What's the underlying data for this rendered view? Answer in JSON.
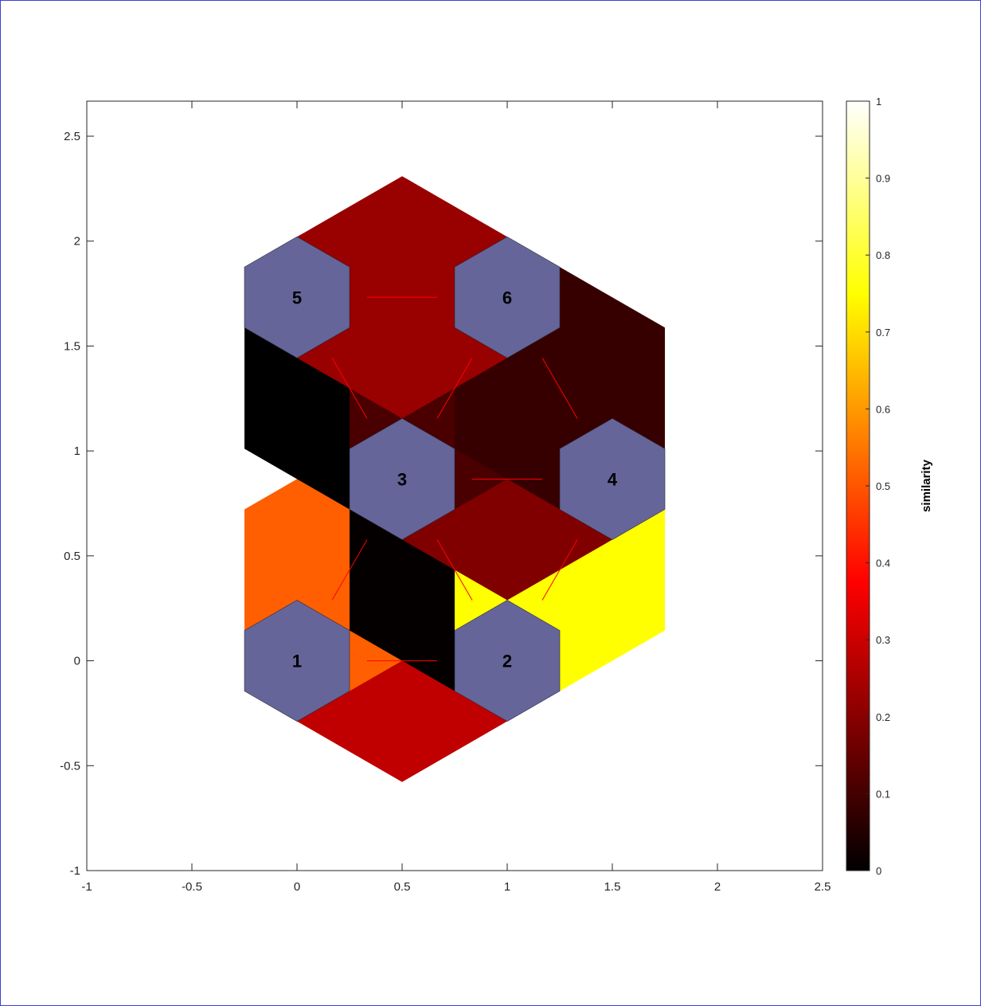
{
  "chart_data": {
    "type": "heatmap",
    "title": "",
    "xlabel": "",
    "ylabel": "",
    "xlim": [
      -1,
      2.5
    ],
    "ylim": [
      -1,
      2.667
    ],
    "x_ticks": [
      "-1",
      "-0.5",
      "0",
      "0.5",
      "1",
      "1.5",
      "2",
      "2.5"
    ],
    "y_ticks": [
      "-1",
      "-0.5",
      "0",
      "0.5",
      "1",
      "1.5",
      "2",
      "2.5"
    ],
    "neurons": [
      {
        "label": "1",
        "x": 0,
        "y": 0
      },
      {
        "label": "2",
        "x": 1,
        "y": 0
      },
      {
        "label": "3",
        "x": 0.5,
        "y": 0.866
      },
      {
        "label": "4",
        "x": 1.5,
        "y": 0.866
      },
      {
        "label": "5",
        "x": 0,
        "y": 1.732
      },
      {
        "label": "6",
        "x": 1,
        "y": 1.732
      }
    ],
    "connections": [
      {
        "from": "1",
        "to": "2",
        "similarity": 0.25,
        "color": "#c00000"
      },
      {
        "from": "1",
        "to": "3",
        "similarity": 0.57,
        "color": "#ff5f00"
      },
      {
        "from": "2",
        "to": "3",
        "similarity": 0.01,
        "color": "#050000"
      },
      {
        "from": "2",
        "to": "4",
        "similarity": 0.75,
        "color": "#ffff00"
      },
      {
        "from": "3",
        "to": "4",
        "similarity": 0.17,
        "color": "#800000"
      },
      {
        "from": "3",
        "to": "5",
        "similarity": 0.0,
        "color": "#000000"
      },
      {
        "from": "3",
        "to": "6",
        "similarity": 0.09,
        "color": "#4a0000"
      },
      {
        "from": "4",
        "to": "6",
        "similarity": 0.07,
        "color": "#370000"
      },
      {
        "from": "5",
        "to": "6",
        "similarity": 0.2,
        "color": "#990000"
      }
    ],
    "neuron_color": "#65659a",
    "link_line_color": "#ff0000",
    "colorbar": {
      "label": "similarity",
      "range": [
        0,
        1
      ],
      "ticks": [
        "0",
        "0.1",
        "0.2",
        "0.3",
        "0.4",
        "0.5",
        "0.6",
        "0.7",
        "0.8",
        "0.9",
        "1"
      ],
      "colormap": "hot"
    },
    "grid": false
  }
}
